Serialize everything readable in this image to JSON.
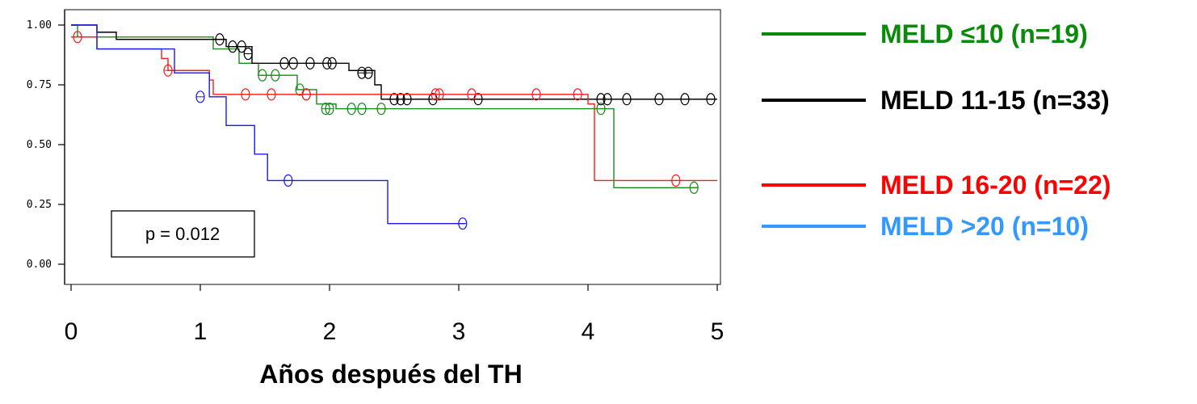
{
  "chart_data": {
    "type": "line",
    "xlabel": "Años después del TH",
    "ylabel": "",
    "xlim": [
      0,
      5
    ],
    "ylim": [
      0,
      1
    ],
    "xticks": [
      "0",
      "1",
      "2",
      "3",
      "4",
      "5"
    ],
    "yticks": [
      "0.00",
      "0.25",
      "0.50",
      "0.75",
      "1.00"
    ],
    "annotation": "p = 0.012",
    "legend_position": "right",
    "grid": false,
    "series": [
      {
        "name": "MELD ≤10 (n=19)",
        "color": "#1a8a1a",
        "legend_color": "#0a8a0a",
        "steps": [
          [
            0,
            1.0
          ],
          [
            0.05,
            0.95
          ],
          [
            1.1,
            0.9
          ],
          [
            1.3,
            0.84
          ],
          [
            1.45,
            0.79
          ],
          [
            1.75,
            0.73
          ],
          [
            1.9,
            0.67
          ],
          [
            2.05,
            0.65
          ],
          [
            4.2,
            0.32
          ],
          [
            4.85,
            0.32
          ]
        ],
        "censored": [
          [
            1.48,
            0.79
          ],
          [
            1.58,
            0.79
          ],
          [
            1.77,
            0.73
          ],
          [
            1.82,
            0.71
          ],
          [
            1.97,
            0.65
          ],
          [
            2.0,
            0.65
          ],
          [
            2.17,
            0.65
          ],
          [
            2.25,
            0.65
          ],
          [
            2.4,
            0.65
          ],
          [
            4.1,
            0.65
          ],
          [
            4.82,
            0.32
          ]
        ]
      },
      {
        "name": "MELD 11-15 (n=33)",
        "color": "#000000",
        "legend_color": "#000000",
        "steps": [
          [
            0,
            1.0
          ],
          [
            0.2,
            0.97
          ],
          [
            0.35,
            0.94
          ],
          [
            1.2,
            0.91
          ],
          [
            1.4,
            0.84
          ],
          [
            2.15,
            0.81
          ],
          [
            2.35,
            0.75
          ],
          [
            2.4,
            0.69
          ],
          [
            5.0,
            0.69
          ]
        ],
        "censored": [
          [
            1.15,
            0.94
          ],
          [
            1.25,
            0.91
          ],
          [
            1.32,
            0.91
          ],
          [
            1.37,
            0.88
          ],
          [
            1.65,
            0.84
          ],
          [
            1.72,
            0.84
          ],
          [
            1.85,
            0.84
          ],
          [
            1.98,
            0.84
          ],
          [
            2.02,
            0.84
          ],
          [
            2.25,
            0.8
          ],
          [
            2.3,
            0.8
          ],
          [
            2.5,
            0.69
          ],
          [
            2.55,
            0.69
          ],
          [
            2.6,
            0.69
          ],
          [
            2.8,
            0.69
          ],
          [
            3.15,
            0.69
          ],
          [
            4.1,
            0.69
          ],
          [
            4.15,
            0.69
          ],
          [
            4.3,
            0.69
          ],
          [
            4.55,
            0.69
          ],
          [
            4.75,
            0.69
          ],
          [
            4.95,
            0.69
          ]
        ]
      },
      {
        "name": "MELD 16-20 (n=22)",
        "color": "#ff1a1a",
        "legend_color": "#ff0000",
        "steps": [
          [
            0,
            0.95
          ],
          [
            0.05,
            0.95
          ],
          [
            0.2,
            0.9
          ],
          [
            0.7,
            0.86
          ],
          [
            0.75,
            0.81
          ],
          [
            1.07,
            0.77
          ],
          [
            1.1,
            0.71
          ],
          [
            4.0,
            0.67
          ],
          [
            4.05,
            0.35
          ],
          [
            5.0,
            0.35
          ]
        ],
        "censored": [
          [
            0.05,
            0.95
          ],
          [
            0.75,
            0.81
          ],
          [
            1.35,
            0.71
          ],
          [
            1.55,
            0.71
          ],
          [
            1.82,
            0.71
          ],
          [
            2.82,
            0.71
          ],
          [
            2.85,
            0.71
          ],
          [
            3.1,
            0.71
          ],
          [
            3.6,
            0.71
          ],
          [
            3.92,
            0.71
          ],
          [
            4.68,
            0.35
          ]
        ]
      },
      {
        "name": "MELD >20 (n=10)",
        "color": "#1a1aee",
        "legend_color": "#3399ff",
        "steps": [
          [
            0,
            1.0
          ],
          [
            0.2,
            0.9
          ],
          [
            0.8,
            0.8
          ],
          [
            1.07,
            0.7
          ],
          [
            1.2,
            0.58
          ],
          [
            1.42,
            0.46
          ],
          [
            1.52,
            0.35
          ],
          [
            2.45,
            0.17
          ],
          [
            3.05,
            0.17
          ]
        ],
        "censored": [
          [
            1.0,
            0.7
          ],
          [
            1.68,
            0.35
          ],
          [
            3.03,
            0.17
          ]
        ]
      }
    ]
  }
}
